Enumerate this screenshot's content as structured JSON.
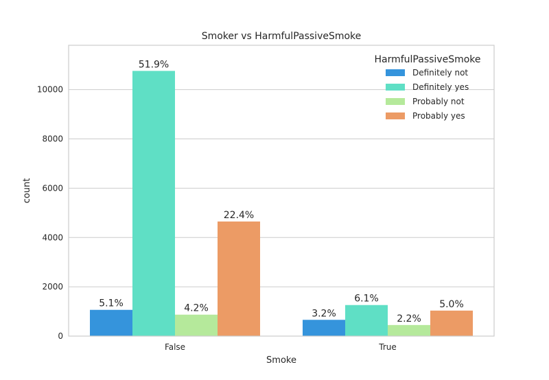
{
  "chart_data": {
    "type": "bar",
    "title": "Smoker vs HarmfulPassiveSmoke",
    "xlabel": "Smoke",
    "ylabel": "count",
    "categories": [
      "False",
      "True"
    ],
    "ylim": [
      0,
      11800
    ],
    "yticks": [
      0,
      2000,
      4000,
      6000,
      8000,
      10000
    ],
    "grid": true,
    "legend": {
      "title": "HarmfulPassiveSmoke",
      "placement": "top-right"
    },
    "series": [
      {
        "name": "Definitely not",
        "color": "#3594dc",
        "values": [
          1065,
          660
        ],
        "labels": [
          "5.1%",
          "3.2%"
        ]
      },
      {
        "name": "Definitely yes",
        "color": "#5fdfc5",
        "values": [
          10760,
          1260
        ],
        "labels": [
          "51.9%",
          "6.1%"
        ]
      },
      {
        "name": "Probably not",
        "color": "#b5e99b",
        "values": [
          870,
          450
        ],
        "labels": [
          "4.2%",
          "2.2%"
        ]
      },
      {
        "name": "Probably yes",
        "color": "#ec9b65",
        "values": [
          4650,
          1035
        ],
        "labels": [
          "22.4%",
          "5.0%"
        ]
      }
    ]
  }
}
